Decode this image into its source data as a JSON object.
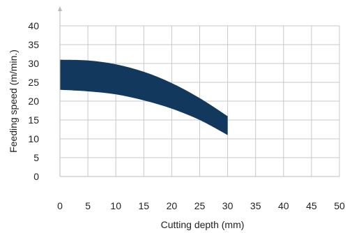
{
  "chart_data": {
    "type": "area",
    "title": "",
    "xlabel": "Cutting depth (mm)",
    "ylabel": "Feeding speed (m/min.)",
    "xlim": [
      0,
      50
    ],
    "ylim": [
      0,
      40
    ],
    "x_ticks": [
      0,
      5,
      10,
      15,
      20,
      25,
      30,
      35,
      40,
      45,
      50
    ],
    "y_ticks": [
      0,
      5,
      10,
      15,
      20,
      25,
      30,
      35,
      40
    ],
    "grid": true,
    "band_color": "#13385e",
    "grid_color": "#c8c8c8",
    "series": [
      {
        "name": "",
        "x": [
          0,
          5,
          10,
          15,
          20,
          25,
          30
        ],
        "upper": [
          31.0,
          30.8,
          29.8,
          27.8,
          24.8,
          20.8,
          16.0
        ],
        "lower": [
          23.0,
          22.6,
          21.8,
          20.2,
          18.0,
          15.0,
          11.0
        ]
      }
    ]
  }
}
